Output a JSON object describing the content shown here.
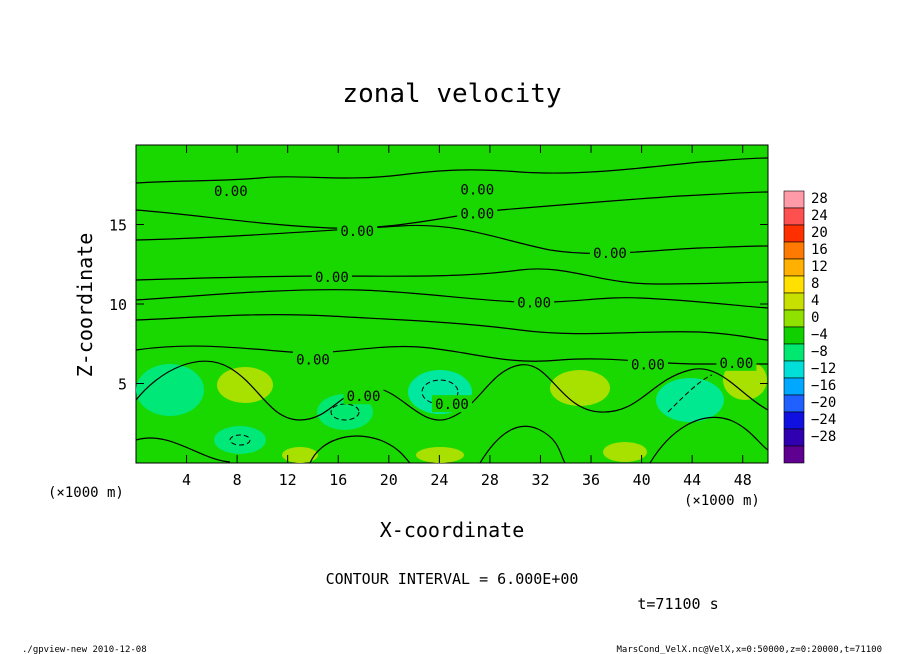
{
  "chart_data": {
    "type": "heatmap",
    "title": "zonal velocity",
    "xlabel": "X-coordinate",
    "ylabel": "Z-coordinate",
    "x_unit_label": "(×1000 m)",
    "z_unit_label": "(×1000 m)",
    "x_ticks": [
      "4",
      "8",
      "12",
      "16",
      "20",
      "24",
      "28",
      "32",
      "36",
      "40",
      "44",
      "48"
    ],
    "x_range": [
      0,
      50
    ],
    "y_ticks": [
      "5",
      "10",
      "15"
    ],
    "y_range": [
      0,
      20
    ],
    "contour_label": "0.00",
    "contour_interval_text": "CONTOUR INTERVAL = 6.000E+00",
    "time_text": "t=71100 s",
    "colorbar": {
      "labels": [
        "28",
        "24",
        "20",
        "16",
        "12",
        "8",
        "4",
        "0",
        "−4",
        "−8",
        "−12",
        "−16",
        "−20",
        "−24",
        "−28"
      ],
      "colors": [
        "#ff9aa8",
        "#ff5050",
        "#ff3000",
        "#ff7a00",
        "#ffb000",
        "#ffe000",
        "#c8e000",
        "#90e000",
        "#10d000",
        "#00e870",
        "#00e0d8",
        "#00a8ff",
        "#2060ff",
        "#1010e0",
        "#3000b0",
        "#600090"
      ]
    },
    "background_color": "#18d800"
  },
  "footer": {
    "left": "./gpview-new   2010-12-08",
    "right": "MarsCond_VelX.nc@VelX,x=0:50000,z=0:20000,t=71100"
  }
}
